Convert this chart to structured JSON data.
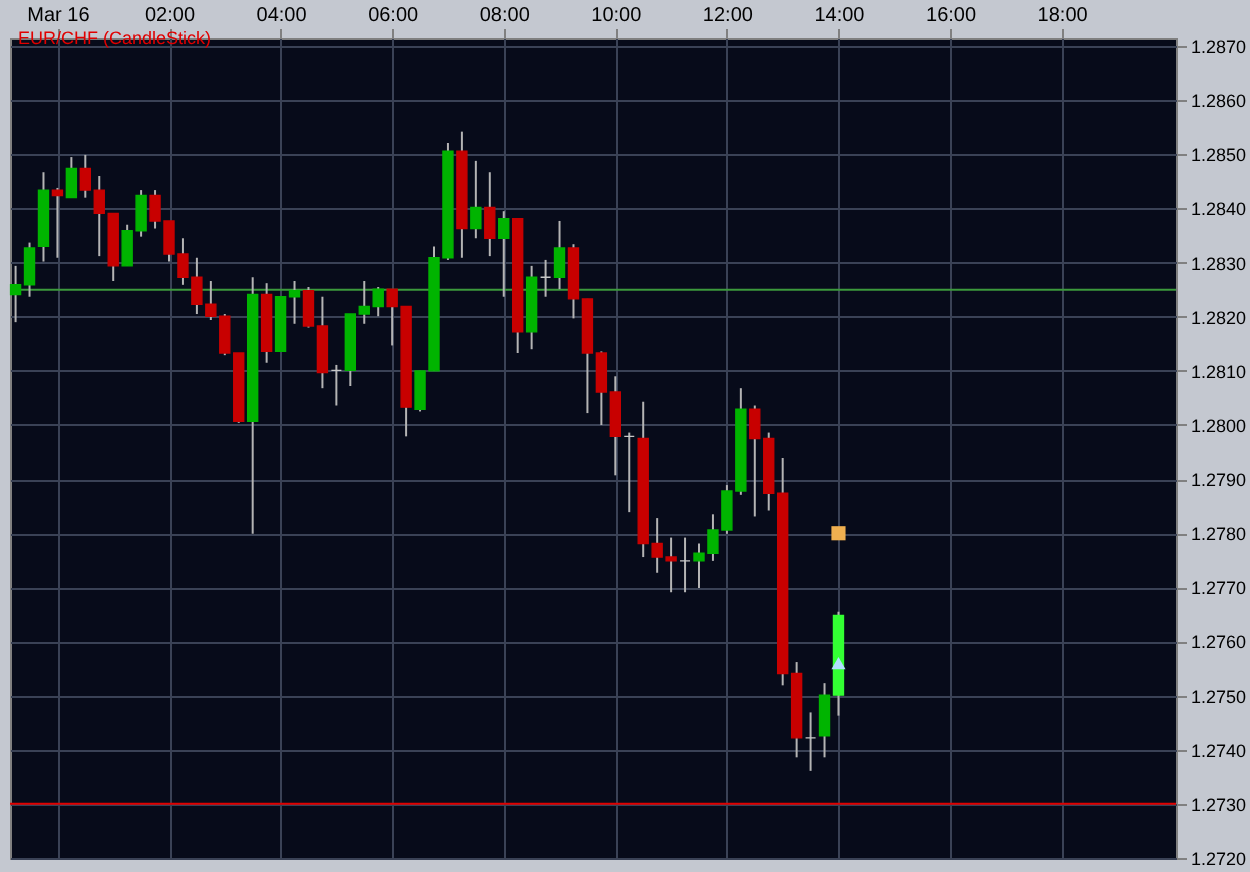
{
  "chart_data": {
    "type": "candlestick",
    "title": "EUR/CHF (CandleStick)",
    "x": [
      -0.75,
      -0.5,
      -0.25,
      0,
      0.25,
      0.5,
      0.75,
      1,
      1.25,
      1.5,
      1.75,
      2,
      2.25,
      2.5,
      2.75,
      3,
      3.25,
      3.5,
      3.75,
      4,
      4.25,
      4.5,
      4.75,
      5,
      5.25,
      5.5,
      5.75,
      6,
      6.25,
      6.5,
      6.75,
      7,
      7.25,
      7.5,
      7.75,
      8,
      8.25,
      8.5,
      8.75,
      9,
      9.25,
      9.5,
      9.75,
      10,
      10.25,
      10.5,
      10.75,
      11,
      11.25,
      11.5,
      11.75,
      12,
      12.25,
      12.5,
      12.75,
      13,
      13.25,
      13.5,
      13.75,
      14
    ],
    "ohlc": [
      [
        1.28241,
        1.28294,
        1.2819,
        1.28259
      ],
      [
        1.28259,
        1.28337,
        1.28237,
        1.28327
      ],
      [
        1.2833,
        1.28467,
        1.28302,
        1.28434
      ],
      [
        1.28434,
        1.28438,
        1.28309,
        1.28424
      ],
      [
        1.2842,
        1.28495,
        1.2842,
        1.28474
      ],
      [
        1.28474,
        1.28499,
        1.2842,
        1.28434
      ],
      [
        1.28434,
        1.2846,
        1.28312,
        1.28391
      ],
      [
        1.28391,
        1.28391,
        1.28266,
        1.28294
      ],
      [
        1.28294,
        1.2837,
        1.28294,
        1.28359
      ],
      [
        1.28359,
        1.28434,
        1.28348,
        1.28424
      ],
      [
        1.28424,
        1.28434,
        1.28363,
        1.28377
      ],
      [
        1.28377,
        1.28377,
        1.28302,
        1.28316
      ],
      [
        1.28316,
        1.28345,
        1.28259,
        1.28273
      ],
      [
        1.28273,
        1.28309,
        1.28205,
        1.28223
      ],
      [
        1.28223,
        1.28266,
        1.28194,
        1.28201
      ],
      [
        1.28201,
        1.28205,
        1.28129,
        1.28133
      ],
      [
        1.28133,
        1.28133,
        1.28004,
        1.28007
      ],
      [
        1.28007,
        1.28273,
        1.27799,
        1.28241
      ],
      [
        1.28241,
        1.28262,
        1.28115,
        1.28136
      ],
      [
        1.28136,
        1.28237,
        1.28136,
        1.28237
      ],
      [
        1.28237,
        1.28266,
        1.28187,
        1.28248
      ],
      [
        1.28248,
        1.28255,
        1.2818,
        1.28183
      ],
      [
        1.28183,
        1.28237,
        1.28068,
        1.28097
      ],
      [
        1.28101,
        1.28111,
        1.28036,
        1.28101
      ],
      [
        1.28101,
        1.28205,
        1.28072,
        1.28205
      ],
      [
        1.28205,
        1.28266,
        1.28187,
        1.28219
      ],
      [
        1.28219,
        1.28255,
        1.28201,
        1.28251
      ],
      [
        1.28251,
        1.28251,
        1.28147,
        1.28219
      ],
      [
        1.28219,
        1.28219,
        1.27979,
        1.28033
      ],
      [
        1.28029,
        1.281,
        1.28025,
        1.281
      ],
      [
        1.281,
        1.2833,
        1.281,
        1.28309
      ],
      [
        1.28309,
        1.28521,
        1.28305,
        1.28506
      ],
      [
        1.28506,
        1.28542,
        1.28309,
        1.28363
      ],
      [
        1.28363,
        1.28488,
        1.28345,
        1.28402
      ],
      [
        1.28402,
        1.28467,
        1.28312,
        1.28345
      ],
      [
        1.28345,
        1.28395,
        1.28237,
        1.28381
      ],
      [
        1.28381,
        1.28381,
        1.28133,
        1.28172
      ],
      [
        1.28172,
        1.28294,
        1.2814,
        1.28273
      ],
      [
        1.28273,
        1.28305,
        1.28237,
        1.28273
      ],
      [
        1.28273,
        1.28377,
        1.28251,
        1.28327
      ],
      [
        1.28327,
        1.28334,
        1.28197,
        1.28233
      ],
      [
        1.28233,
        1.28233,
        1.28022,
        1.28133
      ],
      [
        1.28133,
        1.28136,
        1.28,
        1.28061
      ],
      [
        1.28061,
        1.2809,
        1.27907,
        1.27979
      ],
      [
        1.27979,
        1.27986,
        1.27839,
        1.27979
      ],
      [
        1.27975,
        1.28043,
        1.27756,
        1.27781
      ],
      [
        1.27781,
        1.27828,
        1.27727,
        1.27756
      ],
      [
        1.27756,
        1.27792,
        1.27691,
        1.27749
      ],
      [
        1.27749,
        1.27792,
        1.27691,
        1.27749
      ],
      [
        1.27749,
        1.27781,
        1.27699,
        1.27763
      ],
      [
        1.27763,
        1.27835,
        1.27749,
        1.27806
      ],
      [
        1.27806,
        1.27889,
        1.27799,
        1.27878
      ],
      [
        1.27878,
        1.28068,
        1.27871,
        1.28029
      ],
      [
        1.28029,
        1.28036,
        1.27831,
        1.27975
      ],
      [
        1.27975,
        1.27986,
        1.27842,
        1.27874
      ],
      [
        1.27874,
        1.27939,
        1.27519,
        1.27541
      ],
      [
        1.27541,
        1.27562,
        1.27386,
        1.27422
      ],
      [
        1.27422,
        1.27469,
        1.27361,
        1.27422
      ],
      [
        1.27426,
        1.27523,
        1.27386,
        1.27501
      ],
      [
        1.27501,
        1.27655,
        1.27463,
        1.27648
      ]
    ],
    "colors": [
      "#00b400",
      "#00b400",
      "#00b400",
      "#c80000",
      "#00b400",
      "#c80000",
      "#c80000",
      "#c80000",
      "#00b400",
      "#00b400",
      "#c80000",
      "#c80000",
      "#c80000",
      "#c80000",
      "#c80000",
      "#c80000",
      "#c80000",
      "#00b400",
      "#c80000",
      "#00b400",
      "#00b400",
      "#c80000",
      "#c80000",
      "#c8c8c8",
      "#00b400",
      "#00b400",
      "#00b400",
      "#c80000",
      "#c80000",
      "#00b400",
      "#00b400",
      "#00b400",
      "#c80000",
      "#00b400",
      "#c80000",
      "#00b400",
      "#c80000",
      "#00b400",
      "#c8c8c8",
      "#00b400",
      "#c80000",
      "#c80000",
      "#c80000",
      "#c80000",
      "#c8c8c8",
      "#c80000",
      "#c80000",
      "#c80000",
      "#c8c8c8",
      "#00b400",
      "#00b400",
      "#00b400",
      "#00b400",
      "#c80000",
      "#c80000",
      "#c80000",
      "#c80000",
      "#c8c8c8",
      "#00b400",
      "#33ff33"
    ],
    "series": [
      {
        "type": "scatter",
        "marker": "square",
        "color": "#f0b050",
        "x": [
          14
        ],
        "values": [
          1.278
        ]
      },
      {
        "type": "scatter",
        "marker": "triangle",
        "color": "#b0e0ff",
        "x": [
          14
        ],
        "values": [
          1.2756
        ]
      }
    ],
    "xlim": [
      -0.85,
      20.05
    ],
    "xticks": [
      {
        "value": 0,
        "label": "Mar 16"
      },
      {
        "value": 2,
        "label": "02:00"
      },
      {
        "value": 4,
        "label": "04:00"
      },
      {
        "value": 6,
        "label": "06:00"
      },
      {
        "value": 8,
        "label": "08:00"
      },
      {
        "value": 10,
        "label": "10:00"
      },
      {
        "value": 12,
        "label": "12:00"
      },
      {
        "value": 14,
        "label": "14:00"
      },
      {
        "value": 16,
        "label": "16:00"
      },
      {
        "value": 18,
        "label": "18:00"
      }
    ],
    "ylim": [
      1.272,
      1.28715
    ],
    "yticks": [
      {
        "value": 1.272,
        "label": "1.2720"
      },
      {
        "value": 1.273,
        "label": "1.2730"
      },
      {
        "value": 1.274,
        "label": "1.2740"
      },
      {
        "value": 1.275,
        "label": "1.2750"
      },
      {
        "value": 1.276,
        "label": "1.2760"
      },
      {
        "value": 1.277,
        "label": "1.2770"
      },
      {
        "value": 1.278,
        "label": "1.2780"
      },
      {
        "value": 1.279,
        "label": "1.2790"
      },
      {
        "value": 1.28,
        "label": "1.2800"
      },
      {
        "value": 1.281,
        "label": "1.2810"
      },
      {
        "value": 1.282,
        "label": "1.2820"
      },
      {
        "value": 1.283,
        "label": "1.2830"
      },
      {
        "value": 1.284,
        "label": "1.2840"
      },
      {
        "value": 1.285,
        "label": "1.2850"
      },
      {
        "value": 1.286,
        "label": "1.2860"
      },
      {
        "value": 1.287,
        "label": "1.2870"
      }
    ],
    "ref_lines": [
      {
        "axis": "y",
        "value": 1.2825,
        "color": "#3c9a3c"
      },
      {
        "axis": "y",
        "value": 1.273,
        "color": "#e00000"
      }
    ],
    "grid": true
  }
}
